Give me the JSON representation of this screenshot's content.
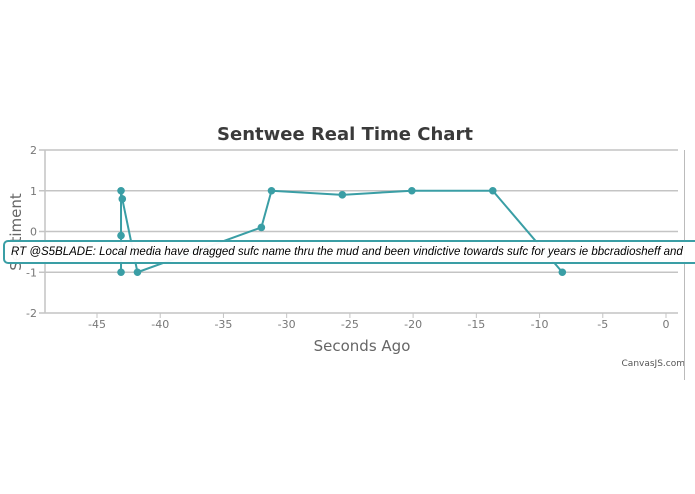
{
  "chart_data": {
    "type": "line",
    "title": "Sentwee Real Time Chart",
    "xlabel": "Seconds Ago",
    "ylabel": "Sentiment",
    "xlim": [
      -49,
      1
    ],
    "ylim": [
      -2,
      2
    ],
    "xticks": [
      -45,
      -40,
      -35,
      -30,
      -25,
      -20,
      -15,
      -10,
      -5,
      0
    ],
    "yticks": [
      2,
      1,
      0,
      -1,
      -2
    ],
    "grid": "horizontal",
    "color": "#3a9ea5",
    "series": [
      {
        "x": [
          -43.1,
          -43.1,
          -43.1,
          -43.0,
          -41.8,
          -32.0,
          -31.2,
          -25.6,
          -20.1,
          -13.7,
          -8.2
        ],
        "y": [
          -1,
          -0.1,
          1,
          0.8,
          -1,
          0.1,
          1,
          0.9,
          1,
          1,
          -1
        ]
      }
    ]
  },
  "tooltip": "RT @S5BLADE: Local media have dragged sufc name thru the mud and been vindictive towards sufc for years ie bbcradiosheff and",
  "credit": "CanvasJS.com"
}
